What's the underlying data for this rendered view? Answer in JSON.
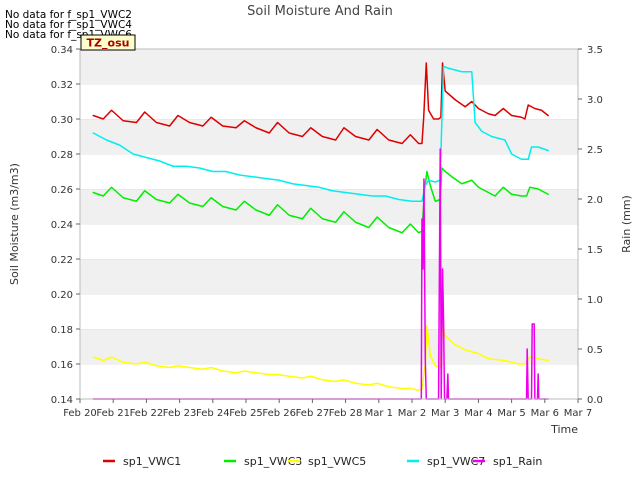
{
  "chart_data": {
    "type": "line",
    "title": "Soil Moisture And Rain",
    "xlabel": "Time",
    "ylabel": "Soil Moisture (m3/m3)",
    "y2label": "Rain (mm)",
    "no_data_messages": [
      "No data for f_sp1_VWC2",
      "No data for f_sp1_VWC4",
      "No data for f_sp1_VWC6"
    ],
    "site_label": "TZ_osu",
    "x_ticks": [
      "Feb 20",
      "Feb 21",
      "Feb 22",
      "Feb 23",
      "Feb 24",
      "Feb 25",
      "Feb 26",
      "Feb 27",
      "Feb 28",
      "Mar 1",
      "Mar 2",
      "Mar 3",
      "Mar 4",
      "Mar 5",
      "Mar 6",
      "Mar 7"
    ],
    "xlim": [
      0,
      15
    ],
    "ylim": [
      0.14,
      0.34
    ],
    "y_ticks": [
      0.14,
      0.16,
      0.18,
      0.2,
      0.22,
      0.24,
      0.26,
      0.28,
      0.3,
      0.32,
      0.34
    ],
    "y2lim": [
      0.0,
      3.5
    ],
    "y2_ticks": [
      0.0,
      0.5,
      1.0,
      1.5,
      2.0,
      2.5,
      3.0,
      3.5
    ],
    "grid": "horizontal bands",
    "legend_position": "bottom",
    "series": [
      {
        "name": "sp1_VWC1",
        "color": "#dd0000",
        "axis": "left",
        "points": [
          [
            0.4,
            0.302
          ],
          [
            0.7,
            0.3
          ],
          [
            0.95,
            0.305
          ],
          [
            1.3,
            0.299
          ],
          [
            1.7,
            0.298
          ],
          [
            1.95,
            0.304
          ],
          [
            2.3,
            0.298
          ],
          [
            2.7,
            0.296
          ],
          [
            2.95,
            0.302
          ],
          [
            3.3,
            0.298
          ],
          [
            3.7,
            0.296
          ],
          [
            3.95,
            0.301
          ],
          [
            4.3,
            0.296
          ],
          [
            4.7,
            0.295
          ],
          [
            4.95,
            0.299
          ],
          [
            5.3,
            0.295
          ],
          [
            5.7,
            0.292
          ],
          [
            5.95,
            0.298
          ],
          [
            6.3,
            0.292
          ],
          [
            6.7,
            0.29
          ],
          [
            6.95,
            0.295
          ],
          [
            7.3,
            0.29
          ],
          [
            7.7,
            0.288
          ],
          [
            7.95,
            0.295
          ],
          [
            8.3,
            0.29
          ],
          [
            8.7,
            0.288
          ],
          [
            8.95,
            0.294
          ],
          [
            9.3,
            0.288
          ],
          [
            9.7,
            0.286
          ],
          [
            9.95,
            0.291
          ],
          [
            10.2,
            0.286
          ],
          [
            10.3,
            0.286
          ],
          [
            10.35,
            0.3
          ],
          [
            10.43,
            0.332
          ],
          [
            10.5,
            0.305
          ],
          [
            10.65,
            0.3
          ],
          [
            10.8,
            0.3
          ],
          [
            10.87,
            0.301
          ],
          [
            10.92,
            0.332
          ],
          [
            11.0,
            0.316
          ],
          [
            11.3,
            0.311
          ],
          [
            11.6,
            0.307
          ],
          [
            11.8,
            0.31
          ],
          [
            12.0,
            0.306
          ],
          [
            12.3,
            0.303
          ],
          [
            12.5,
            0.302
          ],
          [
            12.75,
            0.306
          ],
          [
            13.0,
            0.302
          ],
          [
            13.3,
            0.301
          ],
          [
            13.4,
            0.3
          ],
          [
            13.5,
            0.308
          ],
          [
            13.7,
            0.306
          ],
          [
            13.9,
            0.305
          ],
          [
            14.1,
            0.302
          ]
        ]
      },
      {
        "name": "sp1_VWC3",
        "color": "#00ee00",
        "axis": "left",
        "points": [
          [
            0.4,
            0.258
          ],
          [
            0.7,
            0.256
          ],
          [
            0.95,
            0.261
          ],
          [
            1.3,
            0.255
          ],
          [
            1.7,
            0.253
          ],
          [
            1.95,
            0.259
          ],
          [
            2.3,
            0.254
          ],
          [
            2.7,
            0.252
          ],
          [
            2.95,
            0.257
          ],
          [
            3.3,
            0.252
          ],
          [
            3.7,
            0.25
          ],
          [
            3.95,
            0.255
          ],
          [
            4.3,
            0.25
          ],
          [
            4.7,
            0.248
          ],
          [
            4.95,
            0.253
          ],
          [
            5.3,
            0.248
          ],
          [
            5.7,
            0.245
          ],
          [
            5.95,
            0.251
          ],
          [
            6.3,
            0.245
          ],
          [
            6.7,
            0.243
          ],
          [
            6.95,
            0.249
          ],
          [
            7.3,
            0.243
          ],
          [
            7.7,
            0.241
          ],
          [
            7.95,
            0.247
          ],
          [
            8.3,
            0.241
          ],
          [
            8.7,
            0.238
          ],
          [
            8.95,
            0.244
          ],
          [
            9.3,
            0.238
          ],
          [
            9.7,
            0.235
          ],
          [
            9.95,
            0.24
          ],
          [
            10.2,
            0.235
          ],
          [
            10.3,
            0.236
          ],
          [
            10.38,
            0.26
          ],
          [
            10.45,
            0.27
          ],
          [
            10.55,
            0.262
          ],
          [
            10.7,
            0.253
          ],
          [
            10.85,
            0.254
          ],
          [
            10.9,
            0.272
          ],
          [
            11.0,
            0.27
          ],
          [
            11.2,
            0.267
          ],
          [
            11.5,
            0.263
          ],
          [
            11.8,
            0.265
          ],
          [
            12.0,
            0.261
          ],
          [
            12.3,
            0.258
          ],
          [
            12.5,
            0.256
          ],
          [
            12.75,
            0.261
          ],
          [
            13.0,
            0.257
          ],
          [
            13.3,
            0.256
          ],
          [
            13.45,
            0.256
          ],
          [
            13.55,
            0.261
          ],
          [
            13.8,
            0.26
          ],
          [
            14.1,
            0.257
          ]
        ]
      },
      {
        "name": "sp1_VWC5",
        "color": "#ffff00",
        "axis": "left",
        "points": [
          [
            0.4,
            0.164
          ],
          [
            0.7,
            0.162
          ],
          [
            0.95,
            0.164
          ],
          [
            1.3,
            0.161
          ],
          [
            1.7,
            0.16
          ],
          [
            1.95,
            0.161
          ],
          [
            2.3,
            0.159
          ],
          [
            2.7,
            0.158
          ],
          [
            2.95,
            0.159
          ],
          [
            3.3,
            0.158
          ],
          [
            3.7,
            0.157
          ],
          [
            3.95,
            0.158
          ],
          [
            4.3,
            0.156
          ],
          [
            4.7,
            0.155
          ],
          [
            4.95,
            0.156
          ],
          [
            5.3,
            0.155
          ],
          [
            5.7,
            0.154
          ],
          [
            5.95,
            0.154
          ],
          [
            6.3,
            0.153
          ],
          [
            6.7,
            0.152
          ],
          [
            6.95,
            0.153
          ],
          [
            7.3,
            0.151
          ],
          [
            7.7,
            0.15
          ],
          [
            7.95,
            0.151
          ],
          [
            8.3,
            0.149
          ],
          [
            8.7,
            0.148
          ],
          [
            8.95,
            0.149
          ],
          [
            9.3,
            0.147
          ],
          [
            9.7,
            0.146
          ],
          [
            9.95,
            0.146
          ],
          [
            10.2,
            0.145
          ],
          [
            10.3,
            0.146
          ],
          [
            10.4,
            0.16
          ],
          [
            10.45,
            0.182
          ],
          [
            10.55,
            0.165
          ],
          [
            10.7,
            0.159
          ],
          [
            10.85,
            0.158
          ],
          [
            10.92,
            0.182
          ],
          [
            11.0,
            0.176
          ],
          [
            11.3,
            0.171
          ],
          [
            11.6,
            0.168
          ],
          [
            12.0,
            0.166
          ],
          [
            12.3,
            0.163
          ],
          [
            12.8,
            0.162
          ],
          [
            13.2,
            0.16
          ],
          [
            13.4,
            0.16
          ],
          [
            13.55,
            0.164
          ],
          [
            13.8,
            0.163
          ],
          [
            14.1,
            0.162
          ]
        ]
      },
      {
        "name": "sp1_VWC7",
        "color": "#00eeee",
        "axis": "left",
        "points": [
          [
            0.4,
            0.292
          ],
          [
            0.8,
            0.288
          ],
          [
            1.2,
            0.285
          ],
          [
            1.6,
            0.28
          ],
          [
            2.0,
            0.278
          ],
          [
            2.4,
            0.276
          ],
          [
            2.8,
            0.273
          ],
          [
            3.2,
            0.273
          ],
          [
            3.6,
            0.272
          ],
          [
            4.0,
            0.27
          ],
          [
            4.4,
            0.27
          ],
          [
            4.8,
            0.268
          ],
          [
            5.2,
            0.267
          ],
          [
            5.6,
            0.266
          ],
          [
            6.0,
            0.265
          ],
          [
            6.4,
            0.263
          ],
          [
            6.8,
            0.262
          ],
          [
            7.2,
            0.261
          ],
          [
            7.6,
            0.259
          ],
          [
            8.0,
            0.258
          ],
          [
            8.4,
            0.257
          ],
          [
            8.8,
            0.256
          ],
          [
            9.2,
            0.256
          ],
          [
            9.6,
            0.254
          ],
          [
            10.0,
            0.253
          ],
          [
            10.3,
            0.253
          ],
          [
            10.4,
            0.262
          ],
          [
            10.5,
            0.265
          ],
          [
            10.7,
            0.264
          ],
          [
            10.85,
            0.265
          ],
          [
            10.9,
            0.3
          ],
          [
            10.95,
            0.33
          ],
          [
            11.1,
            0.329
          ],
          [
            11.5,
            0.327
          ],
          [
            11.8,
            0.327
          ],
          [
            11.9,
            0.298
          ],
          [
            12.1,
            0.293
          ],
          [
            12.4,
            0.29
          ],
          [
            12.8,
            0.288
          ],
          [
            13.0,
            0.28
          ],
          [
            13.3,
            0.277
          ],
          [
            13.5,
            0.277
          ],
          [
            13.6,
            0.284
          ],
          [
            13.8,
            0.284
          ],
          [
            14.1,
            0.282
          ]
        ]
      },
      {
        "name": "sp1_Rain",
        "color": "#ee00ee",
        "axis": "right",
        "points": [
          [
            0.4,
            0.0
          ],
          [
            10.28,
            0.0
          ],
          [
            10.3,
            1.8
          ],
          [
            10.33,
            1.3
          ],
          [
            10.36,
            2.2
          ],
          [
            10.4,
            0.4
          ],
          [
            10.43,
            0.0
          ],
          [
            10.8,
            0.0
          ],
          [
            10.85,
            2.5
          ],
          [
            10.88,
            0.0
          ],
          [
            10.92,
            1.3
          ],
          [
            10.95,
            0.8
          ],
          [
            10.98,
            0.0
          ],
          [
            11.05,
            0.0
          ],
          [
            11.08,
            0.25
          ],
          [
            11.1,
            0.0
          ],
          [
            13.45,
            0.0
          ],
          [
            13.47,
            0.5
          ],
          [
            13.5,
            0.0
          ],
          [
            13.6,
            0.0
          ],
          [
            13.62,
            0.75
          ],
          [
            13.68,
            0.75
          ],
          [
            13.7,
            0.0
          ],
          [
            13.78,
            0.0
          ],
          [
            13.8,
            0.25
          ],
          [
            13.82,
            0.0
          ],
          [
            14.1,
            0.0
          ]
        ]
      }
    ]
  }
}
